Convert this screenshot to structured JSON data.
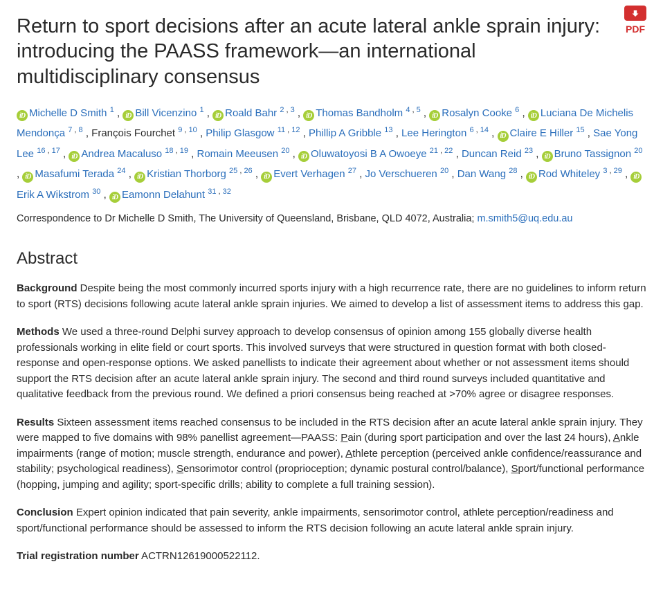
{
  "title": "Return to sport decisions after an acute lateral ankle sprain injury: introducing the PAASS framework—an international multidisciplinary consensus",
  "pdf": {
    "label": "PDF"
  },
  "authors": [
    {
      "orcid": true,
      "name": "Michelle D Smith",
      "aff": [
        "1"
      ],
      "link": true
    },
    {
      "orcid": true,
      "name": "Bill Vicenzino",
      "aff": [
        "1"
      ],
      "link": true
    },
    {
      "orcid": true,
      "name": "Roald Bahr",
      "aff": [
        "2",
        "3"
      ],
      "link": true
    },
    {
      "orcid": true,
      "name": "Thomas Bandholm",
      "aff": [
        "4",
        "5"
      ],
      "link": true
    },
    {
      "orcid": true,
      "name": "Rosalyn Cooke",
      "aff": [
        "6"
      ],
      "link": true
    },
    {
      "orcid": true,
      "name": "Luciana De Michelis Mendonça",
      "aff": [
        "7",
        "8"
      ],
      "link": true
    },
    {
      "orcid": false,
      "name": "François Fourchet",
      "aff": [
        "9",
        "10"
      ],
      "link": false
    },
    {
      "orcid": false,
      "name": "Philip Glasgow",
      "aff": [
        "11",
        "12"
      ],
      "link": true
    },
    {
      "orcid": false,
      "name": "Phillip A Gribble",
      "aff": [
        "13"
      ],
      "link": true
    },
    {
      "orcid": false,
      "name": "Lee Herington",
      "aff": [
        "6",
        "14"
      ],
      "link": true
    },
    {
      "orcid": true,
      "name": "Claire E Hiller",
      "aff": [
        "15"
      ],
      "link": true
    },
    {
      "orcid": false,
      "name": "Sae Yong Lee",
      "aff": [
        "16",
        "17"
      ],
      "link": true
    },
    {
      "orcid": true,
      "name": "Andrea Macaluso",
      "aff": [
        "18",
        "19"
      ],
      "link": true
    },
    {
      "orcid": false,
      "name": "Romain Meeusen",
      "aff": [
        "20"
      ],
      "link": true
    },
    {
      "orcid": true,
      "name": "Oluwatoyosi B A Owoeye",
      "aff": [
        "21",
        "22"
      ],
      "link": true
    },
    {
      "orcid": false,
      "name": "Duncan Reid",
      "aff": [
        "23"
      ],
      "link": true
    },
    {
      "orcid": true,
      "name": "Bruno Tassignon",
      "aff": [
        "20"
      ],
      "link": true
    },
    {
      "orcid": true,
      "name": "Masafumi Terada",
      "aff": [
        "24"
      ],
      "link": true
    },
    {
      "orcid": true,
      "name": "Kristian Thorborg",
      "aff": [
        "25",
        "26"
      ],
      "link": true
    },
    {
      "orcid": true,
      "name": "Evert Verhagen",
      "aff": [
        "27"
      ],
      "link": true
    },
    {
      "orcid": false,
      "name": "Jo Verschueren",
      "aff": [
        "20"
      ],
      "link": true
    },
    {
      "orcid": false,
      "name": "Dan Wang",
      "aff": [
        "28"
      ],
      "link": true
    },
    {
      "orcid": true,
      "name": "Rod Whiteley",
      "aff": [
        "3",
        "29"
      ],
      "link": true
    },
    {
      "orcid": true,
      "name": "Erik A Wikstrom",
      "aff": [
        "30"
      ],
      "link": true
    },
    {
      "orcid": true,
      "name": "Eamonn Delahunt",
      "aff": [
        "31",
        "32"
      ],
      "link": true
    }
  ],
  "correspondence": {
    "prefix": "Correspondence to Dr Michelle D Smith, The University of Queensland, Brisbane, QLD 4072, Australia; ",
    "email": "m.smith5@uq.edu.au"
  },
  "abstract": {
    "heading": "Abstract",
    "sections": [
      {
        "label": "Background",
        "text": " Despite being the most commonly incurred sports injury with a high recurrence rate, there are no guidelines to inform return to sport (RTS) decisions following acute lateral ankle sprain injuries. We aimed to develop a list of assessment items to address this gap."
      },
      {
        "label": "Methods",
        "text": " We used a three-round Delphi survey approach to develop consensus of opinion among 155 globally diverse health professionals working in elite field or court sports. This involved surveys that were structured in question format with both closed-response and open-response options. We asked panellists to indicate their agreement about whether or not assessment items should support the RTS decision after an acute lateral ankle sprain injury. The second and third round surveys included quantitative and qualitative feedback from the previous round. We defined a priori consensus being reached at >70% agree or disagree responses."
      },
      {
        "label": "Results",
        "text_pre": " Sixteen assessment items reached consensus to be included in the RTS decision after an acute lateral ankle sprain injury. They were mapped to five domains with 98% panellist agreement—PAASS: ",
        "paass": [
          {
            "letter": "P",
            "rest": "ain (during sport participation and over the last 24 hours), "
          },
          {
            "letter": "A",
            "rest": "nkle impairments (range of motion; muscle strength, endurance and power), "
          },
          {
            "letter": "A",
            "rest": "thlete perception (perceived ankle confidence/reassurance and stability; psychological readiness), "
          },
          {
            "letter": "S",
            "rest": "ensorimotor control (proprioception; dynamic postural control/balance), "
          },
          {
            "letter": "S",
            "rest": "port/functional performance (hopping, jumping and agility; sport-specific drills; ability to complete a full training session)."
          }
        ]
      },
      {
        "label": "Conclusion",
        "text": " Expert opinion indicated that pain severity, ankle impairments, sensorimotor control, athlete perception/readiness and sport/functional performance should be assessed to inform the RTS decision following an acute lateral ankle sprain injury."
      },
      {
        "label": "Trial registration number",
        "text": " ACTRN12619000522112."
      }
    ]
  }
}
